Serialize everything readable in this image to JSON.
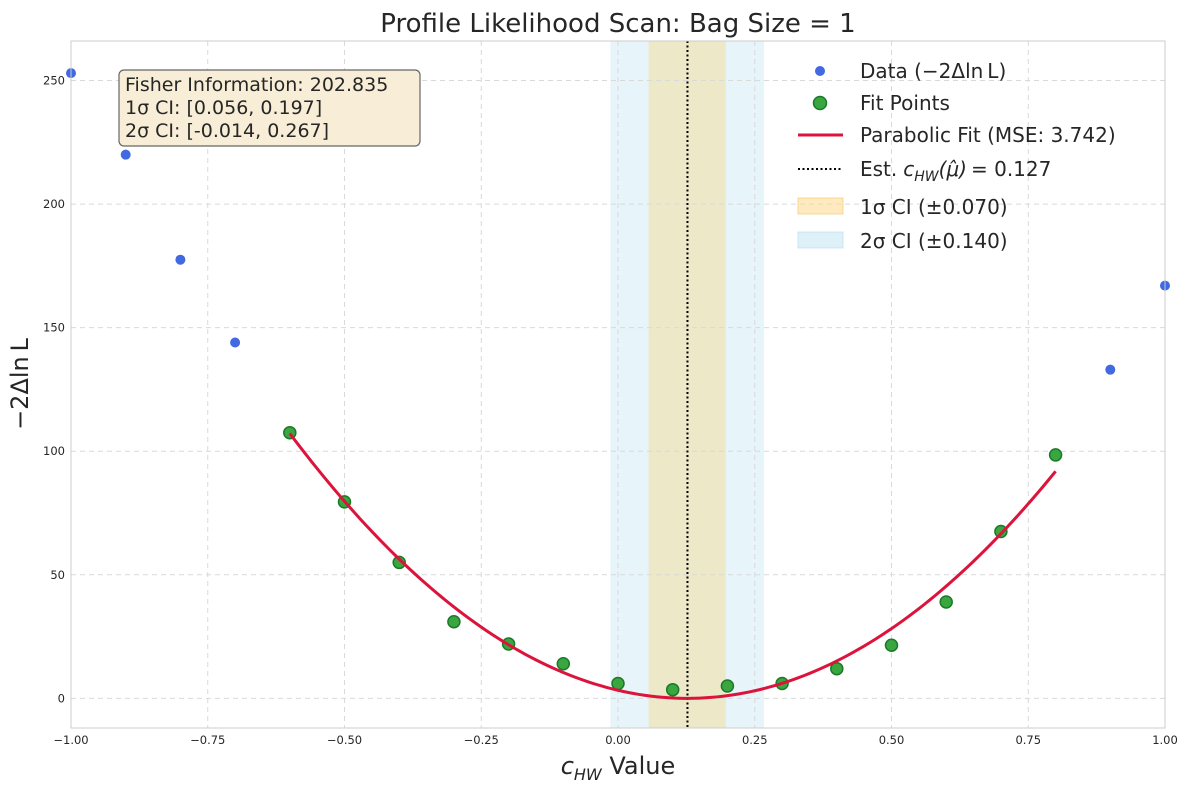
{
  "chart_data": {
    "type": "scatter",
    "title": "Profile Likelihood Scan: Bag Size = 1",
    "xlabel": {
      "var": "c",
      "sub": "HW",
      "rest": " Value"
    },
    "ylabel": "−2Δln L",
    "xlim": [
      -1.0,
      1.0
    ],
    "ylim": [
      -12,
      266
    ],
    "x_ticks": [
      -1.0,
      -0.75,
      -0.5,
      -0.25,
      0.0,
      0.25,
      0.5,
      0.75,
      1.0
    ],
    "x_tick_labels": [
      "−1.00",
      "−0.75",
      "−0.50",
      "−0.25",
      "0.00",
      "0.25",
      "0.50",
      "0.75",
      "1.00"
    ],
    "y_ticks": [
      0,
      50,
      100,
      150,
      200,
      250
    ],
    "y_tick_labels": [
      "0",
      "50",
      "100",
      "150",
      "200",
      "250"
    ],
    "grid": true,
    "legend_position": "top-right",
    "colors": {
      "data": "#4169e1",
      "fit_points": "#2ca02c",
      "fit_points_edge": "#1a7a2a",
      "fit_line": "#dc143c",
      "estimate": "#000000",
      "ci1": "#f5d98a",
      "ci2": "#bfe3f2"
    },
    "series": [
      {
        "name": "Data (−2Δln L)",
        "kind": "scatter",
        "x": [
          -1.0,
          -0.9,
          -0.8,
          -0.7,
          0.9,
          1.0
        ],
        "y": [
          253,
          220,
          177.5,
          144,
          133,
          167
        ]
      },
      {
        "name": "Fit Points",
        "kind": "scatter",
        "x": [
          -0.6,
          -0.5,
          -0.4,
          -0.3,
          -0.2,
          -0.1,
          0.0,
          0.1,
          0.2,
          0.3,
          0.4,
          0.5,
          0.6,
          0.7,
          0.8
        ],
        "y": [
          107.5,
          79.5,
          55,
          31,
          22,
          14,
          6,
          3.5,
          5,
          6,
          12,
          21.5,
          39,
          67.5,
          98.5
        ]
      },
      {
        "name": "Parabolic Fit (MSE: 3.742)",
        "kind": "curve",
        "equation": "y = 202.835 * (x - 0.127)^2",
        "fisher_information": 202.835,
        "vertex_x": 0.127,
        "x_range": [
          -0.6,
          0.8
        ]
      }
    ],
    "estimate": {
      "value": 0.127,
      "legend_prefix": "Est.",
      "legend_var": "c",
      "legend_sub": "HW",
      "legend_arg": "(μ̂)",
      "legend_value": "= 0.127"
    },
    "bands": [
      {
        "name": "1σ CI (±0.070)",
        "low": 0.056,
        "high": 0.197
      },
      {
        "name": "2σ CI (±0.140)",
        "low": -0.014,
        "high": 0.267
      }
    ],
    "info_box": {
      "lines": [
        "Fisher Information: 202.835",
        "1σ CI: [0.056, 0.197]",
        "2σ CI: [-0.014, 0.267]"
      ]
    }
  }
}
